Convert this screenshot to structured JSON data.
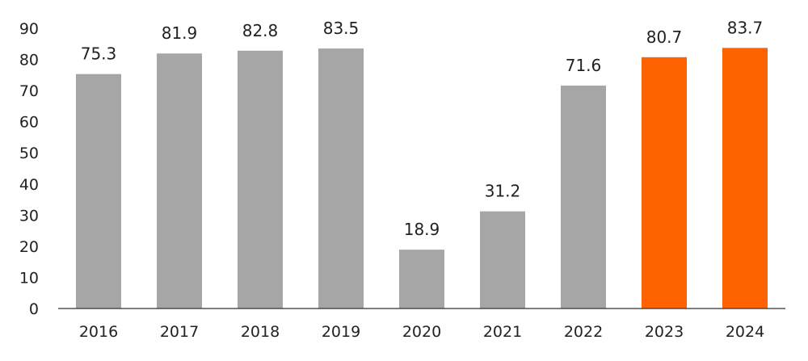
{
  "chart_data": {
    "type": "bar",
    "title": "",
    "xlabel": "",
    "ylabel": "",
    "categories": [
      "2016",
      "2017",
      "2018",
      "2019",
      "2020",
      "2021",
      "2022",
      "2023",
      "2024"
    ],
    "values": [
      75.3,
      81.9,
      82.8,
      83.5,
      18.9,
      31.2,
      71.6,
      80.7,
      83.7
    ],
    "data_labels": [
      "75.3",
      "81.9",
      "82.8",
      "83.5",
      "18.9",
      "31.2",
      "71.6",
      "80.7",
      "83.7"
    ],
    "ylim": [
      0,
      90
    ],
    "yticks": [
      "0",
      "10",
      "20",
      "30",
      "40",
      "50",
      "60",
      "70",
      "80",
      "90"
    ],
    "grid": false,
    "legend": "none",
    "colors": {
      "actual": "#a6a6a6",
      "forecast": "#ff6200"
    },
    "bar_colors": [
      "#a6a6a6",
      "#a6a6a6",
      "#a6a6a6",
      "#a6a6a6",
      "#a6a6a6",
      "#a6a6a6",
      "#a6a6a6",
      "#ff6200",
      "#ff6200"
    ]
  }
}
